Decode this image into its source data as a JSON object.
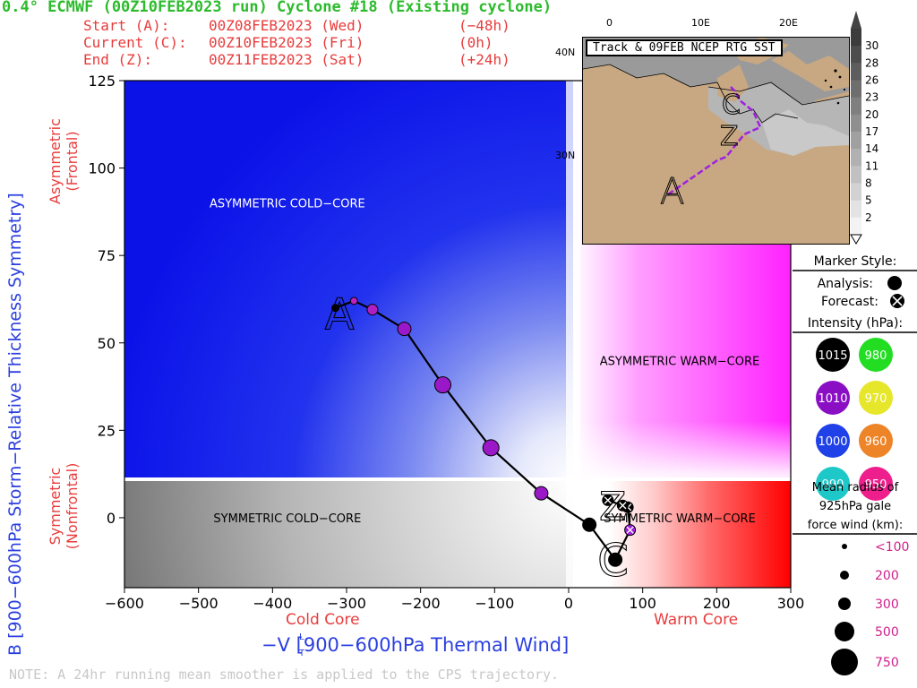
{
  "header": {
    "title": "0.4° ECMWF (00Z10FEB2023 run) Cyclone #18 (Existing cyclone)",
    "start": {
      "label": "Start (A):",
      "time": "00Z08FEB2023 (Wed)",
      "offset": "(−48h)"
    },
    "current": {
      "label": "Current (C):",
      "time": "00Z10FEB2023 (Fri)",
      "offset": "(0h)"
    },
    "end": {
      "label": "End (Z):",
      "time": "00Z11FEB2023 (Sat)",
      "offset": "(+24h)"
    }
  },
  "axes": {
    "ylabel": "B [900−600hPa Storm−Relative Thickness Symmetry]",
    "ylabel_top_line1": "Asymmetric",
    "ylabel_top_line2": "(Frontal)",
    "ylabel_bottom_line1": "Symmetric",
    "ylabel_bottom_line2": "(Nonfrontal)",
    "xlabel": "−V  [900−600hPa Thermal Wind]",
    "xlabel_sub_t": "T",
    "xlabel_sup_l": "L",
    "xlabel_cold": "Cold Core",
    "xlabel_warm": "Warm Core"
  },
  "note": "NOTE:  A 24hr running mean smoother is applied to the CPS trajectory.",
  "inset": {
    "title": "Track & 09FEB NCEP RTG SST",
    "lon_ticks": [
      "0",
      "10E",
      "20E"
    ],
    "lat_ticks": [
      "40N",
      "30N"
    ],
    "colorbar_ticks": [
      "30",
      "28",
      "26",
      "23",
      "20",
      "17",
      "14",
      "11",
      "8",
      "5",
      "2"
    ]
  },
  "legend": {
    "marker_style_title": "Marker Style:",
    "analysis_label": "Analysis:",
    "forecast_label": "Forecast:",
    "intensity_title": "Intensity (hPa):",
    "intensity_items": [
      {
        "value": "1015",
        "color": "#000000",
        "text_color": "#ffffff"
      },
      {
        "value": "980",
        "color": "#22dd22",
        "text_color": "#ffffff"
      },
      {
        "value": "1010",
        "color": "#8a0fc4",
        "text_color": "#ffffff"
      },
      {
        "value": "970",
        "color": "#e6e62b",
        "text_color": "#ffffff"
      },
      {
        "value": "1000",
        "color": "#2040e8",
        "text_color": "#ffffff"
      },
      {
        "value": "960",
        "color": "#ee8428",
        "text_color": "#ffffff"
      },
      {
        "value": "990",
        "color": "#1ec8c8",
        "text_color": "#ffffff"
      },
      {
        "value": "950",
        "color": "#ee1e8c",
        "text_color": "#ffffff"
      }
    ],
    "radius_title_1": "Mean radius of",
    "radius_title_2": "925hPa gale",
    "radius_title_3": "force wind (km):",
    "radius_items": [
      "<100",
      "200",
      "300",
      "500",
      "750"
    ]
  },
  "chart_data": {
    "type": "scatter",
    "title": "",
    "xlim": [
      -600,
      300
    ],
    "ylim": [
      -20,
      125
    ],
    "x_ticks": [
      -600,
      -500,
      -400,
      -300,
      -200,
      -100,
      0,
      100,
      200,
      300
    ],
    "y_ticks": [
      0,
      25,
      50,
      75,
      100,
      125
    ],
    "region_labels": [
      {
        "text": "ASYMMETRIC COLD−CORE",
        "x": -380,
        "y": 90
      },
      {
        "text": "ASYMMETRIC WARM−CORE",
        "x": 150,
        "y": 45
      },
      {
        "text": "SYMMETRIC COLD−CORE",
        "x": -380,
        "y": 0
      },
      {
        "text": "SYMMETRIC WARM−CORE",
        "x": 150,
        "y": 0
      }
    ],
    "track_points": [
      {
        "x": -315,
        "y": 60,
        "pressure_hPa": 1015,
        "color": "#000000",
        "radius_km": "<100",
        "type": "analysis"
      },
      {
        "x": -290,
        "y": 62,
        "pressure_hPa": 1010,
        "color": "#c020c0",
        "radius_km": "<100",
        "type": "analysis"
      },
      {
        "x": -265,
        "y": 59.5,
        "pressure_hPa": 1010,
        "color": "#b020c0",
        "radius_km": "200",
        "type": "analysis"
      },
      {
        "x": -222,
        "y": 54,
        "pressure_hPa": 1010,
        "color": "#9a18c8",
        "radius_km": "300",
        "type": "analysis"
      },
      {
        "x": -170,
        "y": 38,
        "pressure_hPa": 1010,
        "color": "#9a18c8",
        "radius_km": "500",
        "type": "analysis"
      },
      {
        "x": -105,
        "y": 20,
        "pressure_hPa": 1010,
        "color": "#9a18c8",
        "radius_km": "500",
        "type": "analysis"
      },
      {
        "x": -37,
        "y": 7,
        "pressure_hPa": 1010,
        "color": "#9a18c8",
        "radius_km": "300",
        "type": "analysis"
      },
      {
        "x": 28,
        "y": -2,
        "pressure_hPa": 1015,
        "color": "#000000",
        "radius_km": "300",
        "type": "analysis"
      },
      {
        "x": 63,
        "y": -12,
        "pressure_hPa": 1015,
        "color": "#000000",
        "radius_km": "300",
        "type": "analysis"
      },
      {
        "x": 83,
        "y": -3.5,
        "pressure_hPa": 1010,
        "color": "#a020e0",
        "radius_km": "200",
        "type": "forecast"
      },
      {
        "x": 80,
        "y": 3,
        "pressure_hPa": 1015,
        "color": "#000000",
        "radius_km": "200",
        "type": "forecast"
      },
      {
        "x": 73,
        "y": 3.5,
        "pressure_hPa": 1015,
        "color": "#000000",
        "radius_km": "200",
        "type": "forecast"
      },
      {
        "x": 53,
        "y": 5,
        "pressure_hPa": 1015,
        "color": "#000000",
        "radius_km": "200",
        "type": "forecast"
      }
    ],
    "labels": [
      {
        "text": "A",
        "x": -310,
        "y": 59
      },
      {
        "text": "C",
        "x": 63,
        "y": -12
      },
      {
        "text": "Z",
        "x": 63,
        "y": 4
      }
    ]
  }
}
